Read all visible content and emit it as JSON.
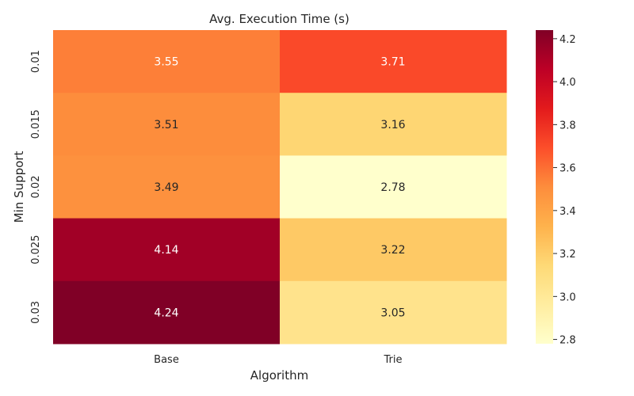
{
  "chart_data": {
    "type": "heatmap",
    "title": "Avg. Execution Time (s)",
    "xlabel": "Algorithm",
    "ylabel": "Min Support",
    "x_categories": [
      "Base",
      "Trie"
    ],
    "y_categories": [
      "0.01",
      "0.015",
      "0.02",
      "0.025",
      "0.03"
    ],
    "values": [
      [
        3.55,
        3.71
      ],
      [
        3.51,
        3.16
      ],
      [
        3.49,
        2.78
      ],
      [
        4.14,
        3.22
      ],
      [
        4.24,
        3.05
      ]
    ],
    "annotations": [
      [
        "3.55",
        "3.71"
      ],
      [
        "3.51",
        "3.16"
      ],
      [
        "3.49",
        "2.78"
      ],
      [
        "4.14",
        "3.22"
      ],
      [
        "4.24",
        "3.05"
      ]
    ],
    "colormap": "YlOrRd",
    "colorbar": {
      "vmin": 2.78,
      "vmax": 4.24,
      "ticks": [
        2.8,
        3.0,
        3.2,
        3.4,
        3.6,
        3.8,
        4.0,
        4.2
      ],
      "tick_labels": [
        "2.8",
        "3.0",
        "3.2",
        "3.4",
        "3.6",
        "3.8",
        "4.0",
        "4.2"
      ]
    },
    "colors": {
      "stops": [
        "#ffffcc",
        "#ffeda0",
        "#fed976",
        "#feb24c",
        "#fd8d3c",
        "#fc4e2a",
        "#e31a1c",
        "#bd0026",
        "#800026"
      ],
      "text_dark": "#262626",
      "text_light": "#ffffff"
    }
  }
}
